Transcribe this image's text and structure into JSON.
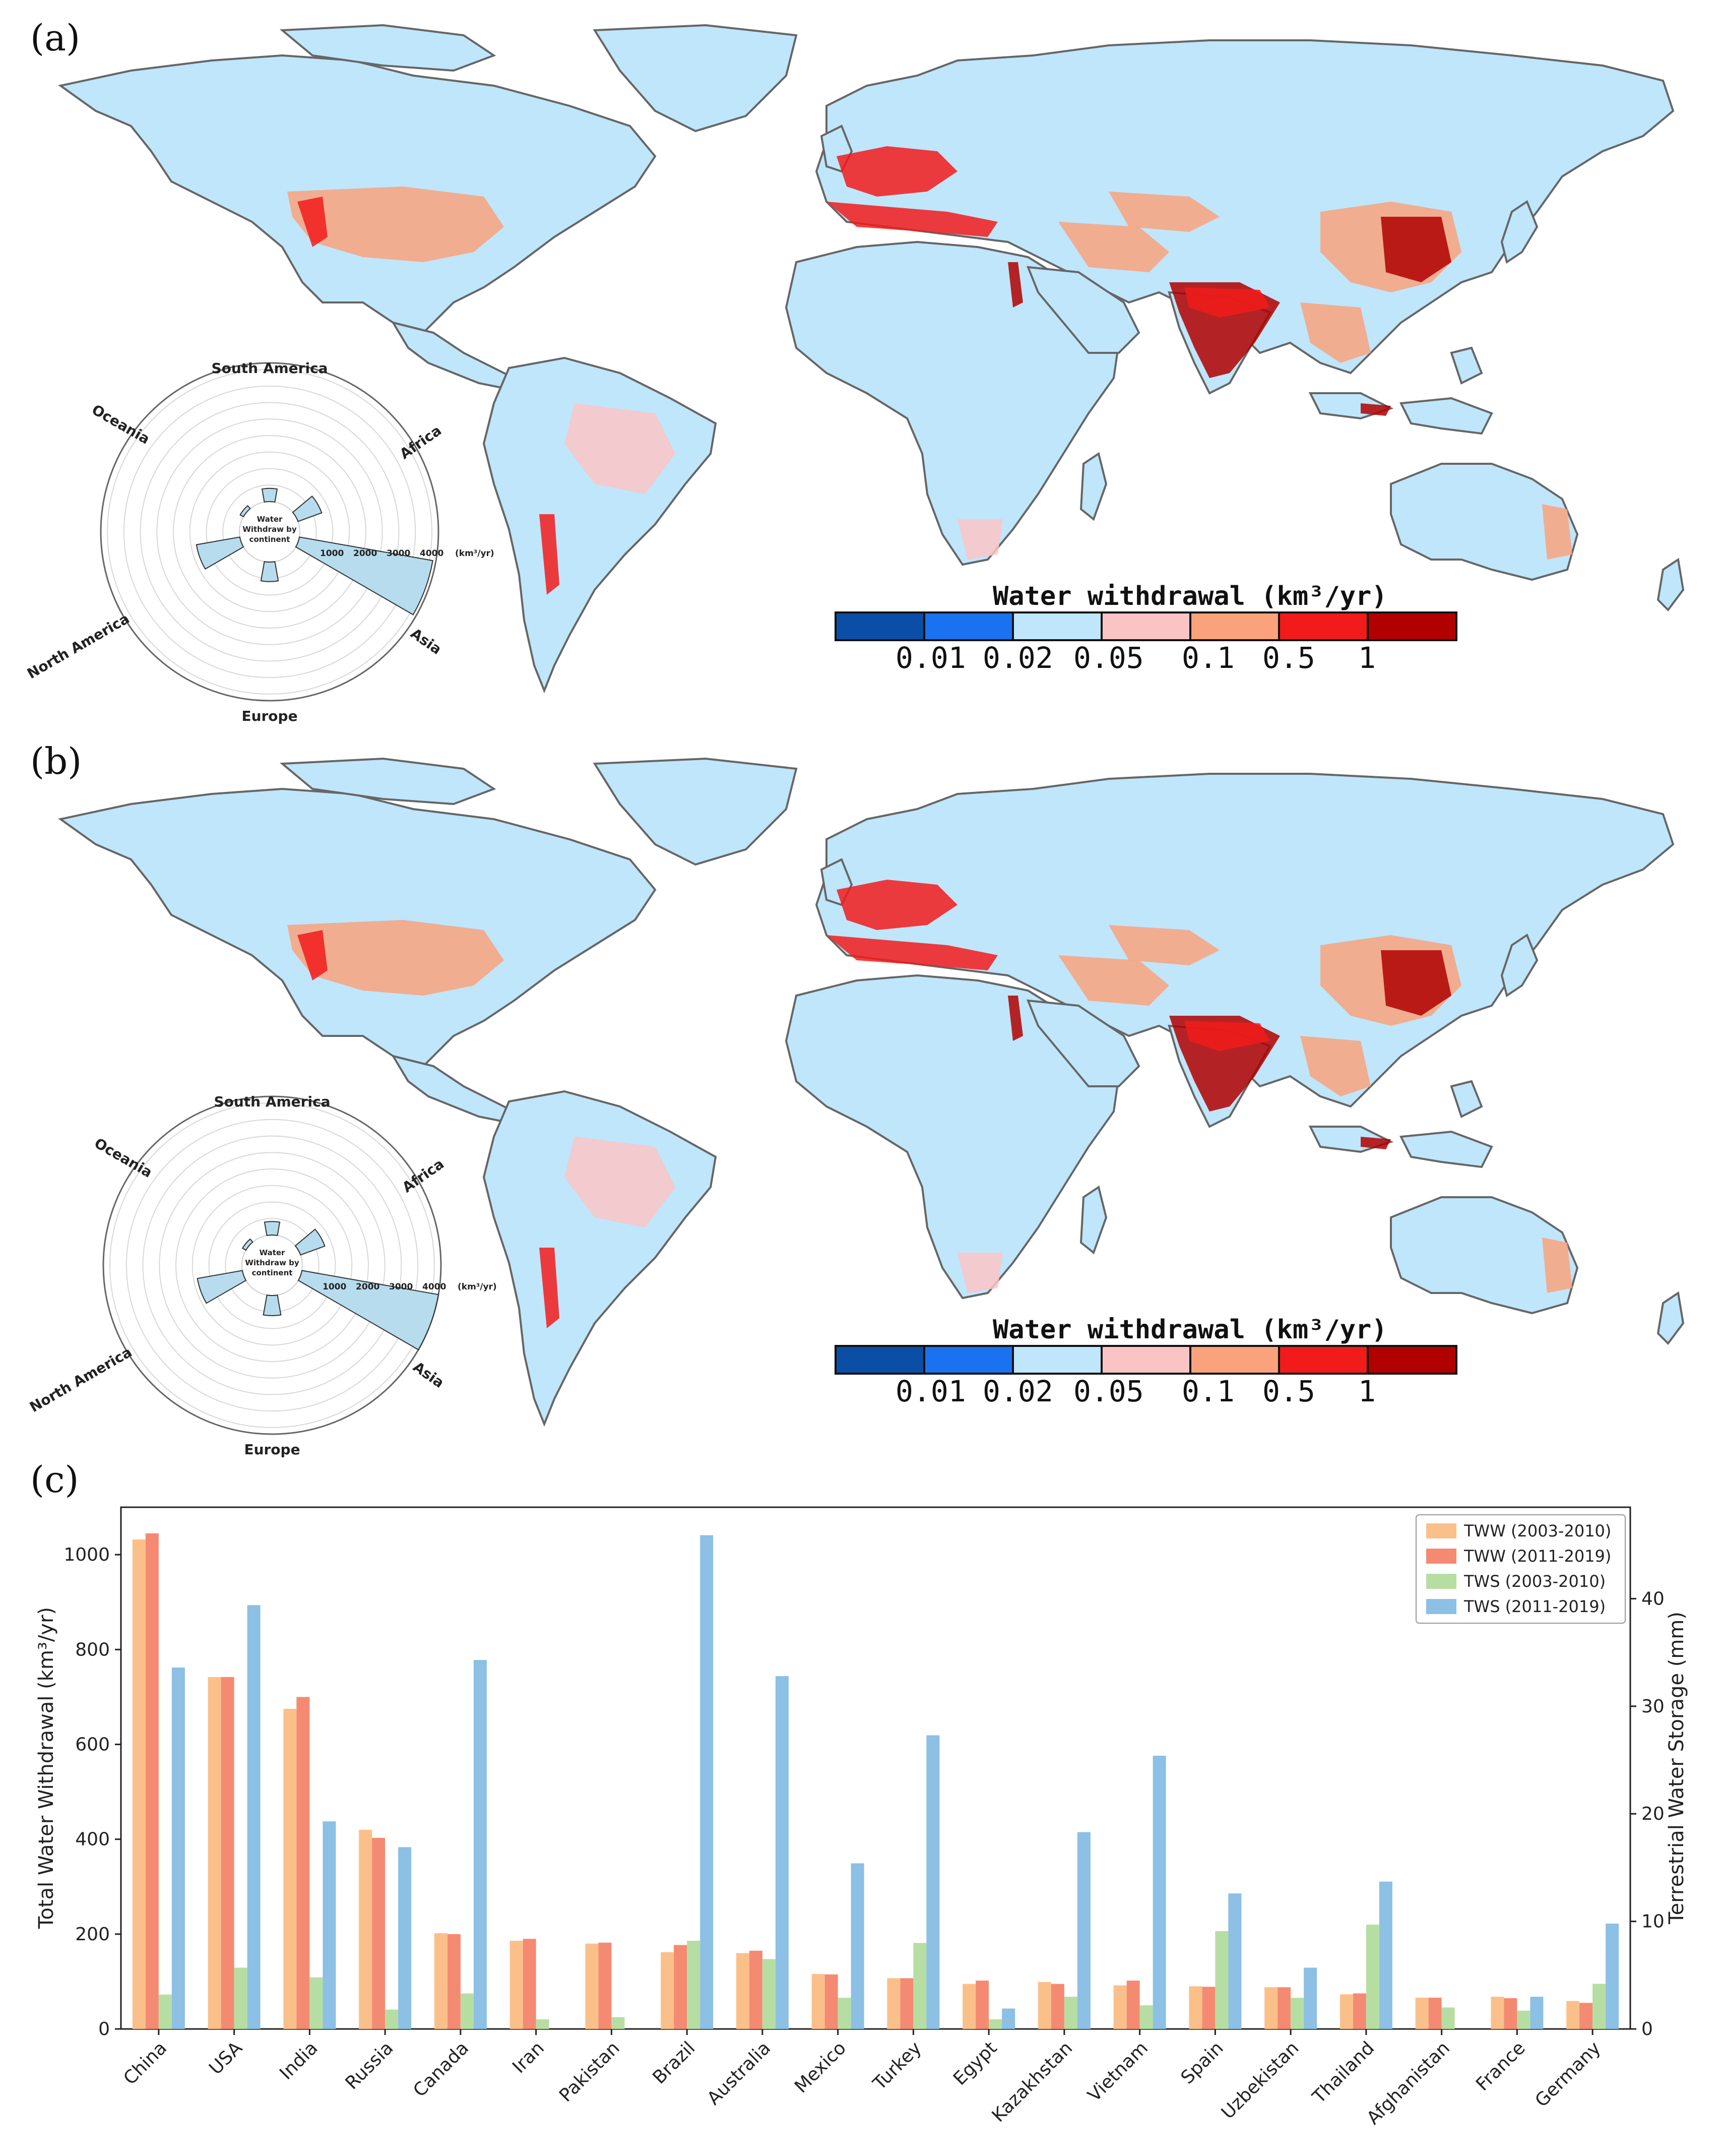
{
  "panels": {
    "a": {
      "label": "(a)"
    },
    "b": {
      "label": "(b)"
    },
    "c": {
      "label": "(c)"
    }
  },
  "colors": {
    "land": "#bfe6fb",
    "border": "#666666",
    "bins": [
      "#0a4ea6",
      "#1a72f0",
      "#bfe6fb",
      "#fbc4c4",
      "#f9a27b",
      "#f21b1b",
      "#b00000"
    ],
    "tww_2003_2010": "#fbc08a",
    "tww_2011_2019": "#f58a72",
    "tws_2003_2010": "#b7dea2",
    "tws_2011_2019": "#8cc0e4",
    "polar_bar": "#b6dcee"
  },
  "colorbar": {
    "title": "Water withdrawal (km³/yr)",
    "ticks": [
      "0.01",
      "0.02",
      "0.05",
      "0.1",
      "0.5",
      "1"
    ]
  },
  "polar": {
    "center_label": [
      "Water",
      "Withdraw by",
      "continent"
    ],
    "unit": "(km³/yr)",
    "ticks": [
      "1000",
      "2000",
      "3000",
      "4000"
    ],
    "continents": [
      "South America",
      "Africa",
      "Asia",
      "Europe",
      "North America",
      "Oceania"
    ]
  },
  "chart_data": [
    {
      "type": "bar",
      "panel": "c",
      "categories": [
        "China",
        "USA",
        "India",
        "Russia",
        "Canada",
        "Iran",
        "Pakistan",
        "Brazil",
        "Australia",
        "Mexico",
        "Turkey",
        "Egypt",
        "Kazakhstan",
        "Vietnam",
        "Spain",
        "Uzbekistan",
        "Thailand",
        "Afghanistan",
        "France",
        "Germany"
      ],
      "ylabel": "Total Water Withdrawal (km³/yr)",
      "y2label": "Terrestrial Water Storage (mm)",
      "ylim": [
        0,
        1100
      ],
      "y2lim": [
        0,
        48.5
      ],
      "yticks": [
        0,
        200,
        400,
        600,
        800,
        1000
      ],
      "y2ticks": [
        0,
        10,
        20,
        30,
        40
      ],
      "legend_position": "top-right",
      "series": [
        {
          "name": "TWW (2003-2010)",
          "axis": "left",
          "values": [
            1032,
            742,
            675,
            420,
            202,
            186,
            180,
            162,
            160,
            116,
            107,
            95,
            99,
            92,
            90,
            88,
            73,
            66,
            68,
            59
          ]
        },
        {
          "name": "TWW (2011-2019)",
          "axis": "left",
          "values": [
            1045,
            742,
            700,
            403,
            200,
            190,
            182,
            177,
            165,
            115,
            107,
            102,
            95,
            102,
            89,
            88,
            75,
            66,
            65,
            55
          ]
        },
        {
          "name": "TWS (2003-2010)",
          "axis": "right",
          "values": [
            3.2,
            5.7,
            4.8,
            1.8,
            3.3,
            0.9,
            1.1,
            8.2,
            6.5,
            2.9,
            8.0,
            0.9,
            3.0,
            2.2,
            9.1,
            2.9,
            9.7,
            2.0,
            1.7,
            4.2
          ]
        },
        {
          "name": "TWS (2011-2019)",
          "axis": "right",
          "values": [
            33.6,
            39.4,
            19.3,
            16.9,
            34.3,
            0.0,
            0.0,
            45.9,
            32.8,
            15.4,
            27.3,
            1.9,
            18.3,
            25.4,
            12.6,
            5.7,
            13.7,
            0.0,
            3.0,
            9.8
          ]
        }
      ]
    },
    {
      "type": "bar",
      "panel": "a",
      "polar": true,
      "categories": [
        "South America",
        "Africa",
        "Asia",
        "Europe",
        "North America",
        "Oceania"
      ],
      "values": [
        420,
        800,
        4300,
        620,
        1400,
        120
      ],
      "ylim": [
        0,
        4400
      ]
    },
    {
      "type": "bar",
      "panel": "b",
      "polar": true,
      "categories": [
        "South America",
        "Africa",
        "Asia",
        "Europe",
        "North America",
        "Oceania"
      ],
      "values": [
        430,
        820,
        4600,
        640,
        1450,
        125
      ],
      "ylim": [
        0,
        4400
      ]
    }
  ]
}
